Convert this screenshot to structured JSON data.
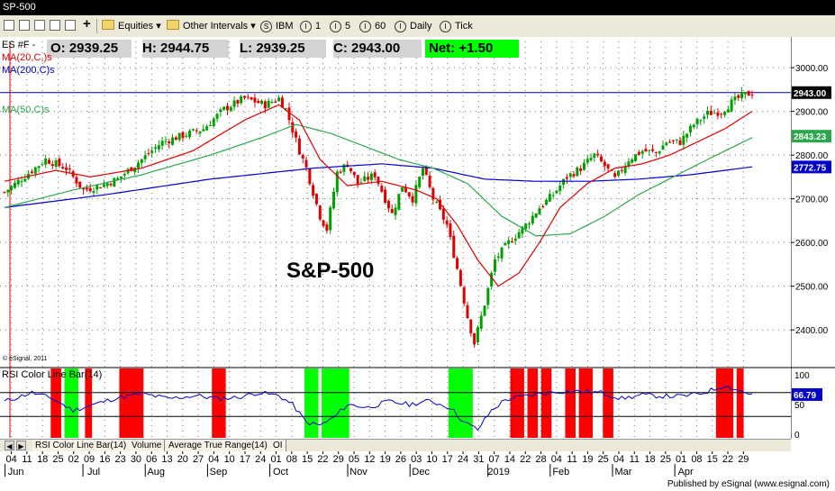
{
  "window": {
    "title": "SP-500"
  },
  "toolbar": {
    "interval_folder": "Equities",
    "other_folder": "Other Intervals",
    "symbol": "IBM",
    "i1": "1",
    "i5": "5",
    "i60": "60",
    "daily": "Daily",
    "tick": "Tick"
  },
  "header": {
    "symbol": "ES #F -",
    "open": "O: 2939.25",
    "high": "H: 2944.75",
    "low": "L: 2939.25",
    "close": "C: 2943.00",
    "net": "Net: +1.50"
  },
  "legend": {
    "ma20": "MA(20,C,)s",
    "ma200": "MA(200,C)s",
    "ma50": "MA(50,C)s",
    "rsi": "RSI Color Line Bar(14)"
  },
  "annotations": {
    "main_label": "S&P-500",
    "copyright": "© eSignal, 2011",
    "published": "Published by eSignal (www.esignal.com)"
  },
  "tabs": [
    "RSI Color Line Bar(14)",
    "Volume",
    "Average True Range(14)",
    "OI"
  ],
  "colors": {
    "up": "#00a000",
    "down": "#e00000",
    "ma20": "#e00000",
    "ma50": "#2ca84c",
    "ma200": "#0000cc",
    "rsi_line": "#0000cc",
    "rsi_hot": "#ff0000",
    "rsi_cold": "#00ff00"
  },
  "chart_data": {
    "type": "candlestick",
    "title": "S&P-500",
    "y_axis": {
      "range": [
        2320,
        3060
      ],
      "ticks": [
        "3000.00",
        "2900.00",
        "2800.00",
        "2700.00",
        "2600.00",
        "2500.00",
        "2400.00"
      ]
    },
    "price_labels": [
      {
        "value": 2943.0,
        "label": "2943.00",
        "color": "#000000"
      },
      {
        "value": 2843.23,
        "label": "2843.23",
        "color": "#2ca84c"
      },
      {
        "value": 2772.75,
        "label": "2772.75",
        "color": "#0000cc"
      }
    ],
    "reference_line": 2943.0,
    "red_top_line": 3075,
    "x_labels": {
      "days": [
        "04",
        "11",
        "18",
        "25",
        "02",
        "09",
        "16",
        "23",
        "30",
        "06",
        "13",
        "20",
        "27",
        "04",
        "10",
        "17",
        "24",
        "01",
        "08",
        "15",
        "22",
        "29",
        "05",
        "12",
        "19",
        "26",
        "03",
        "10",
        "17",
        "24",
        "31",
        "07",
        "14",
        "22",
        "28",
        "04",
        "11",
        "19",
        "25",
        "04",
        "11",
        "18",
        "25",
        "01",
        "08",
        "15",
        "22",
        "29"
      ],
      "months": [
        {
          "label": "Jun",
          "day_index": 0
        },
        {
          "label": "Jul",
          "day_index": 5
        },
        {
          "label": "Aug",
          "day_index": 9
        },
        {
          "label": "Sep",
          "day_index": 13
        },
        {
          "label": "Oct",
          "day_index": 17
        },
        {
          "label": "Nov",
          "day_index": 22
        },
        {
          "label": "Dec",
          "day_index": 26
        },
        {
          "label": "2019",
          "day_index": 31
        },
        {
          "label": "Feb",
          "day_index": 35
        },
        {
          "label": "Mar",
          "day_index": 39
        },
        {
          "label": "Apr",
          "day_index": 43
        }
      ]
    },
    "close_anchors": [
      [
        0,
        2715
      ],
      [
        12,
        2790
      ],
      [
        18,
        2770
      ],
      [
        23,
        2720
      ],
      [
        28,
        2730
      ],
      [
        33,
        2745
      ],
      [
        40,
        2790
      ],
      [
        46,
        2830
      ],
      [
        52,
        2845
      ],
      [
        58,
        2860
      ],
      [
        64,
        2905
      ],
      [
        70,
        2930
      ],
      [
        76,
        2915
      ],
      [
        80,
        2930
      ],
      [
        82,
        2905
      ],
      [
        86,
        2810
      ],
      [
        88,
        2770
      ],
      [
        92,
        2660
      ],
      [
        94,
        2630
      ],
      [
        97,
        2760
      ],
      [
        100,
        2780
      ],
      [
        103,
        2735
      ],
      [
        108,
        2755
      ],
      [
        111,
        2700
      ],
      [
        113,
        2665
      ],
      [
        116,
        2730
      ],
      [
        119,
        2700
      ],
      [
        122,
        2770
      ],
      [
        125,
        2700
      ],
      [
        129,
        2640
      ],
      [
        132,
        2540
      ],
      [
        135,
        2430
      ],
      [
        137,
        2370
      ],
      [
        140,
        2460
      ],
      [
        143,
        2560
      ],
      [
        147,
        2600
      ],
      [
        152,
        2640
      ],
      [
        156,
        2680
      ],
      [
        160,
        2710
      ],
      [
        164,
        2750
      ],
      [
        168,
        2770
      ],
      [
        172,
        2800
      ],
      [
        175,
        2775
      ],
      [
        178,
        2745
      ],
      [
        182,
        2790
      ],
      [
        186,
        2810
      ],
      [
        190,
        2805
      ],
      [
        193,
        2830
      ],
      [
        197,
        2830
      ],
      [
        201,
        2870
      ],
      [
        205,
        2895
      ],
      [
        209,
        2900
      ],
      [
        212,
        2920
      ],
      [
        215,
        2935
      ],
      [
        218,
        2943
      ]
    ],
    "ma20_anchors": [
      [
        0,
        2740
      ],
      [
        15,
        2765
      ],
      [
        25,
        2750
      ],
      [
        40,
        2770
      ],
      [
        55,
        2810
      ],
      [
        70,
        2880
      ],
      [
        80,
        2915
      ],
      [
        86,
        2880
      ],
      [
        92,
        2790
      ],
      [
        100,
        2730
      ],
      [
        110,
        2740
      ],
      [
        120,
        2720
      ],
      [
        126,
        2700
      ],
      [
        132,
        2640
      ],
      [
        138,
        2560
      ],
      [
        144,
        2500
      ],
      [
        150,
        2530
      ],
      [
        156,
        2600
      ],
      [
        162,
        2680
      ],
      [
        170,
        2735
      ],
      [
        178,
        2770
      ],
      [
        186,
        2780
      ],
      [
        194,
        2800
      ],
      [
        202,
        2830
      ],
      [
        210,
        2860
      ],
      [
        218,
        2900
      ]
    ],
    "ma50_anchors": [
      [
        0,
        2680
      ],
      [
        20,
        2720
      ],
      [
        40,
        2755
      ],
      [
        60,
        2800
      ],
      [
        75,
        2840
      ],
      [
        85,
        2870
      ],
      [
        95,
        2850
      ],
      [
        105,
        2820
      ],
      [
        115,
        2790
      ],
      [
        125,
        2770
      ],
      [
        135,
        2735
      ],
      [
        145,
        2660
      ],
      [
        155,
        2615
      ],
      [
        165,
        2620
      ],
      [
        175,
        2660
      ],
      [
        185,
        2710
      ],
      [
        195,
        2750
      ],
      [
        205,
        2790
      ],
      [
        218,
        2840
      ]
    ],
    "ma200_anchors": [
      [
        0,
        2680
      ],
      [
        30,
        2710
      ],
      [
        60,
        2745
      ],
      [
        90,
        2770
      ],
      [
        110,
        2780
      ],
      [
        125,
        2770
      ],
      [
        140,
        2745
      ],
      [
        155,
        2740
      ],
      [
        170,
        2740
      ],
      [
        185,
        2745
      ],
      [
        200,
        2755
      ],
      [
        218,
        2773
      ]
    ],
    "rsi": {
      "range": [
        0,
        100
      ],
      "ticks": [
        "100",
        "50",
        "0"
      ],
      "last_label": "66.79",
      "overbought": 70,
      "oversold": 30,
      "anchors": [
        [
          0,
          55
        ],
        [
          8,
          70
        ],
        [
          14,
          60
        ],
        [
          20,
          40
        ],
        [
          26,
          50
        ],
        [
          32,
          60
        ],
        [
          40,
          68
        ],
        [
          48,
          60
        ],
        [
          56,
          65
        ],
        [
          62,
          60
        ],
        [
          68,
          62
        ],
        [
          74,
          70
        ],
        [
          80,
          65
        ],
        [
          84,
          50
        ],
        [
          88,
          20
        ],
        [
          92,
          15
        ],
        [
          96,
          28
        ],
        [
          100,
          50
        ],
        [
          106,
          45
        ],
        [
          112,
          55
        ],
        [
          118,
          50
        ],
        [
          124,
          56
        ],
        [
          130,
          45
        ],
        [
          134,
          20
        ],
        [
          138,
          8
        ],
        [
          142,
          40
        ],
        [
          146,
          58
        ],
        [
          150,
          62
        ],
        [
          156,
          68
        ],
        [
          162,
          72
        ],
        [
          168,
          72
        ],
        [
          174,
          70
        ],
        [
          180,
          60
        ],
        [
          186,
          66
        ],
        [
          192,
          64
        ],
        [
          198,
          64
        ],
        [
          204,
          70
        ],
        [
          210,
          82
        ],
        [
          214,
          74
        ],
        [
          218,
          67
        ]
      ],
      "hot_bars": [
        [
          14,
          16
        ],
        [
          24,
          25
        ],
        [
          34,
          40
        ],
        [
          61,
          64
        ],
        [
          148,
          149
        ],
        [
          150,
          151
        ],
        [
          153,
          155
        ],
        [
          157,
          159
        ],
        [
          164,
          166
        ],
        [
          168,
          171
        ],
        [
          175,
          177
        ],
        [
          208,
          212
        ],
        [
          214,
          215
        ]
      ],
      "cold_bars": [
        [
          18,
          19
        ],
        [
          20,
          21
        ],
        [
          88,
          91
        ],
        [
          93,
          100
        ],
        [
          130,
          136
        ]
      ]
    }
  }
}
